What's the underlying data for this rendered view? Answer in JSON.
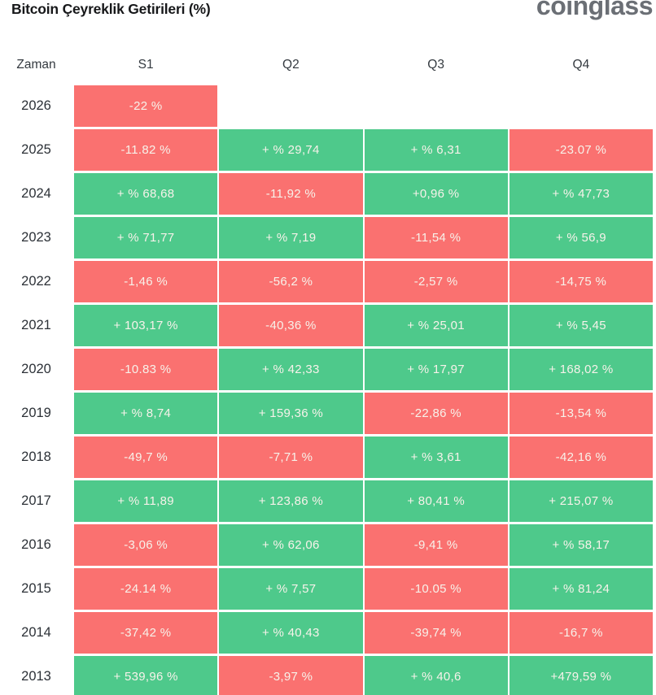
{
  "header": {
    "title": "Bitcoin Çeyreklik Getirileri (%)",
    "logo_text": "coinglass"
  },
  "colors": {
    "positive": "#4ec98b",
    "negative": "#fa7170",
    "cell_text": "#f7f2ea",
    "title_text": "#17181a",
    "logo_gray": "#6b6f75",
    "year_text": "#2c3137"
  },
  "chart_data": {
    "type": "table",
    "title": "Bitcoin Çeyreklik Getirileri (%)",
    "columns": [
      "Zaman",
      "S1",
      "Q2",
      "Q3",
      "Q4"
    ],
    "rows": [
      {
        "year": "2026",
        "cells": [
          {
            "text": "-22 %",
            "value": -22,
            "trend": "negative"
          },
          null,
          null,
          null
        ]
      },
      {
        "year": "2025",
        "cells": [
          {
            "text": "-11.82 %",
            "value": -11.82,
            "trend": "negative"
          },
          {
            "text": "+ % 29,74",
            "value": 29.74,
            "trend": "positive"
          },
          {
            "text": "+ % 6,31",
            "value": 6.31,
            "trend": "positive"
          },
          {
            "text": "-23.07 %",
            "value": -23.07,
            "trend": "negative"
          }
        ]
      },
      {
        "year": "2024",
        "cells": [
          {
            "text": "+ % 68,68",
            "value": 68.68,
            "trend": "positive"
          },
          {
            "text": "-11,92 %",
            "value": -11.92,
            "trend": "negative"
          },
          {
            "text": "+0,96 %",
            "value": 0.96,
            "trend": "positive"
          },
          {
            "text": "+ % 47,73",
            "value": 47.73,
            "trend": "positive"
          }
        ]
      },
      {
        "year": "2023",
        "cells": [
          {
            "text": "+ % 71,77",
            "value": 71.77,
            "trend": "positive"
          },
          {
            "text": "+ % 7,19",
            "value": 7.19,
            "trend": "positive"
          },
          {
            "text": "-11,54 %",
            "value": -11.54,
            "trend": "negative"
          },
          {
            "text": "+ % 56,9",
            "value": 56.9,
            "trend": "positive"
          }
        ]
      },
      {
        "year": "2022",
        "cells": [
          {
            "text": "-1,46 %",
            "value": -1.46,
            "trend": "negative"
          },
          {
            "text": "-56,2 %",
            "value": -56.2,
            "trend": "negative"
          },
          {
            "text": "-2,57 %",
            "value": -2.57,
            "trend": "negative"
          },
          {
            "text": "-14,75 %",
            "value": -14.75,
            "trend": "negative"
          }
        ]
      },
      {
        "year": "2021",
        "cells": [
          {
            "text": "+ 103,17 %",
            "value": 103.17,
            "trend": "positive"
          },
          {
            "text": "-40,36 %",
            "value": -40.36,
            "trend": "negative"
          },
          {
            "text": "+ % 25,01",
            "value": 25.01,
            "trend": "positive"
          },
          {
            "text": "+ % 5,45",
            "value": 5.45,
            "trend": "positive"
          }
        ]
      },
      {
        "year": "2020",
        "cells": [
          {
            "text": "-10.83 %",
            "value": -10.83,
            "trend": "negative"
          },
          {
            "text": "+ % 42,33",
            "value": 42.33,
            "trend": "positive"
          },
          {
            "text": "+ % 17,97",
            "value": 17.97,
            "trend": "positive"
          },
          {
            "text": "+ 168,02 %",
            "value": 168.02,
            "trend": "positive"
          }
        ]
      },
      {
        "year": "2019",
        "cells": [
          {
            "text": "+ % 8,74",
            "value": 8.74,
            "trend": "positive"
          },
          {
            "text": "+ 159,36 %",
            "value": 159.36,
            "trend": "positive"
          },
          {
            "text": "-22,86 %",
            "value": -22.86,
            "trend": "negative"
          },
          {
            "text": "-13,54 %",
            "value": -13.54,
            "trend": "negative"
          }
        ]
      },
      {
        "year": "2018",
        "cells": [
          {
            "text": "-49,7 %",
            "value": -49.7,
            "trend": "negative"
          },
          {
            "text": "-7,71 %",
            "value": -7.71,
            "trend": "negative"
          },
          {
            "text": "+ % 3,61",
            "value": 3.61,
            "trend": "positive"
          },
          {
            "text": "-42,16 %",
            "value": -42.16,
            "trend": "negative"
          }
        ]
      },
      {
        "year": "2017",
        "cells": [
          {
            "text": "+ % 11,89",
            "value": 11.89,
            "trend": "positive"
          },
          {
            "text": "+ 123,86 %",
            "value": 123.86,
            "trend": "positive"
          },
          {
            "text": "+ 80,41 %",
            "value": 80.41,
            "trend": "positive"
          },
          {
            "text": "+ 215,07 %",
            "value": 215.07,
            "trend": "positive"
          }
        ]
      },
      {
        "year": "2016",
        "cells": [
          {
            "text": "-3,06 %",
            "value": -3.06,
            "trend": "negative"
          },
          {
            "text": "+ % 62,06",
            "value": 62.06,
            "trend": "positive"
          },
          {
            "text": "-9,41 %",
            "value": -9.41,
            "trend": "negative"
          },
          {
            "text": "+ % 58,17",
            "value": 58.17,
            "trend": "positive"
          }
        ]
      },
      {
        "year": "2015",
        "cells": [
          {
            "text": "-24.14 %",
            "value": -24.14,
            "trend": "negative"
          },
          {
            "text": "+ % 7,57",
            "value": 7.57,
            "trend": "positive"
          },
          {
            "text": "-10.05 %",
            "value": -10.05,
            "trend": "negative"
          },
          {
            "text": "+ % 81,24",
            "value": 81.24,
            "trend": "positive"
          }
        ]
      },
      {
        "year": "2014",
        "cells": [
          {
            "text": "-37,42 %",
            "value": -37.42,
            "trend": "negative"
          },
          {
            "text": "+ % 40,43",
            "value": 40.43,
            "trend": "positive"
          },
          {
            "text": "-39,74 %",
            "value": -39.74,
            "trend": "negative"
          },
          {
            "text": "-16,7 %",
            "value": -16.7,
            "trend": "negative"
          }
        ]
      },
      {
        "year": "2013",
        "cells": [
          {
            "text": "+ 539,96 %",
            "value": 539.96,
            "trend": "positive"
          },
          {
            "text": "-3,97 %",
            "value": -3.97,
            "trend": "negative"
          },
          {
            "text": "+ % 40,6",
            "value": 40.6,
            "trend": "positive"
          },
          {
            "text": "+479,59 %",
            "value": 479.59,
            "trend": "positive"
          }
        ]
      }
    ]
  }
}
